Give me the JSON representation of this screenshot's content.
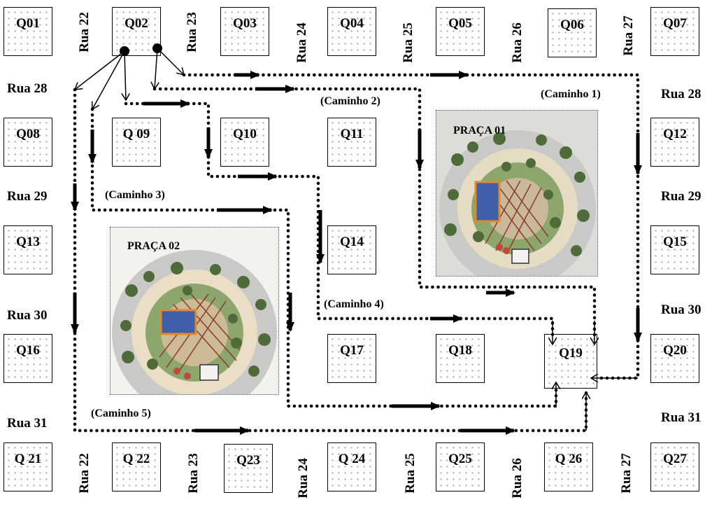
{
  "blocks": {
    "q01": "Q01",
    "q02": "Q02",
    "q03": "Q03",
    "q04": "Q04",
    "q05": "Q05",
    "q06": "Q06",
    "q07": "Q07",
    "q08": "Q08",
    "q09": "Q 09",
    "q10": "Q10",
    "q11": "Q11",
    "q12": "Q12",
    "q13": "Q13",
    "q14": "Q14",
    "q15": "Q15",
    "q16": "Q16",
    "q17": "Q17",
    "q18": "Q18",
    "q19": "Q19",
    "q20": "Q20",
    "q21": "Q 21",
    "q22": "Q 22",
    "q23": "Q23",
    "q24": "Q 24",
    "q25": "Q25",
    "q26": "Q 26",
    "q27": "Q27"
  },
  "streets": {
    "rua28": "Rua 28",
    "rua29": "Rua 29",
    "rua30": "Rua 30",
    "rua31": "Rua 31",
    "rua22": "Rua 22",
    "rua23": "Rua 23",
    "rua24": "Rua 24",
    "rua25": "Rua 25",
    "rua26": "Rua 26",
    "rua27": "Rua 27"
  },
  "routes": {
    "caminho1": "(Caminho 1)",
    "caminho2": "(Caminho 2)",
    "caminho3": "(Caminho 3)",
    "caminho4": "(Caminho 4)",
    "caminho5": "(Caminho 5)"
  },
  "squares": {
    "praca01": "PRAÇA 01",
    "praca02": "PRAÇA 02"
  }
}
